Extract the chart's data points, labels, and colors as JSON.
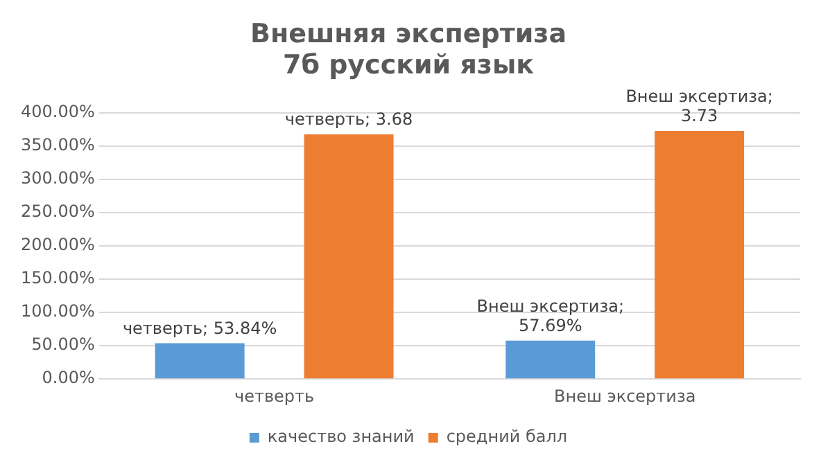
{
  "chart_data": {
    "type": "bar",
    "title": "Внешняя экспертиза\n7б русский язык",
    "categories": [
      "четверть",
      "Внеш эксертиза"
    ],
    "series": [
      {
        "name": "качество знаний",
        "color": "#5b9bd5",
        "values": [
          0.5384,
          0.5769
        ],
        "value_labels": [
          "четверть; 53.84%",
          "Внеш эксертиза; 57.69%"
        ]
      },
      {
        "name": "средний балл",
        "color": "#ed7d31",
        "values": [
          3.68,
          3.73
        ],
        "value_labels": [
          "четверть; 3.68",
          "Внеш эксертиза; 3.73"
        ]
      }
    ],
    "ylim": [
      0,
      4
    ],
    "yticks": [
      {
        "value": 0,
        "label": "0.00%"
      },
      {
        "value": 0.5,
        "label": "50.00%"
      },
      {
        "value": 1,
        "label": "100.00%"
      },
      {
        "value": 1.5,
        "label": "150.00%"
      },
      {
        "value": 2,
        "label": "200.00%"
      },
      {
        "value": 2.5,
        "label": "250.00%"
      },
      {
        "value": 3,
        "label": "300.00%"
      },
      {
        "value": 3.5,
        "label": "350.00%"
      },
      {
        "value": 4,
        "label": "400.00%"
      }
    ],
    "grid": "y",
    "legend": "bottom"
  }
}
